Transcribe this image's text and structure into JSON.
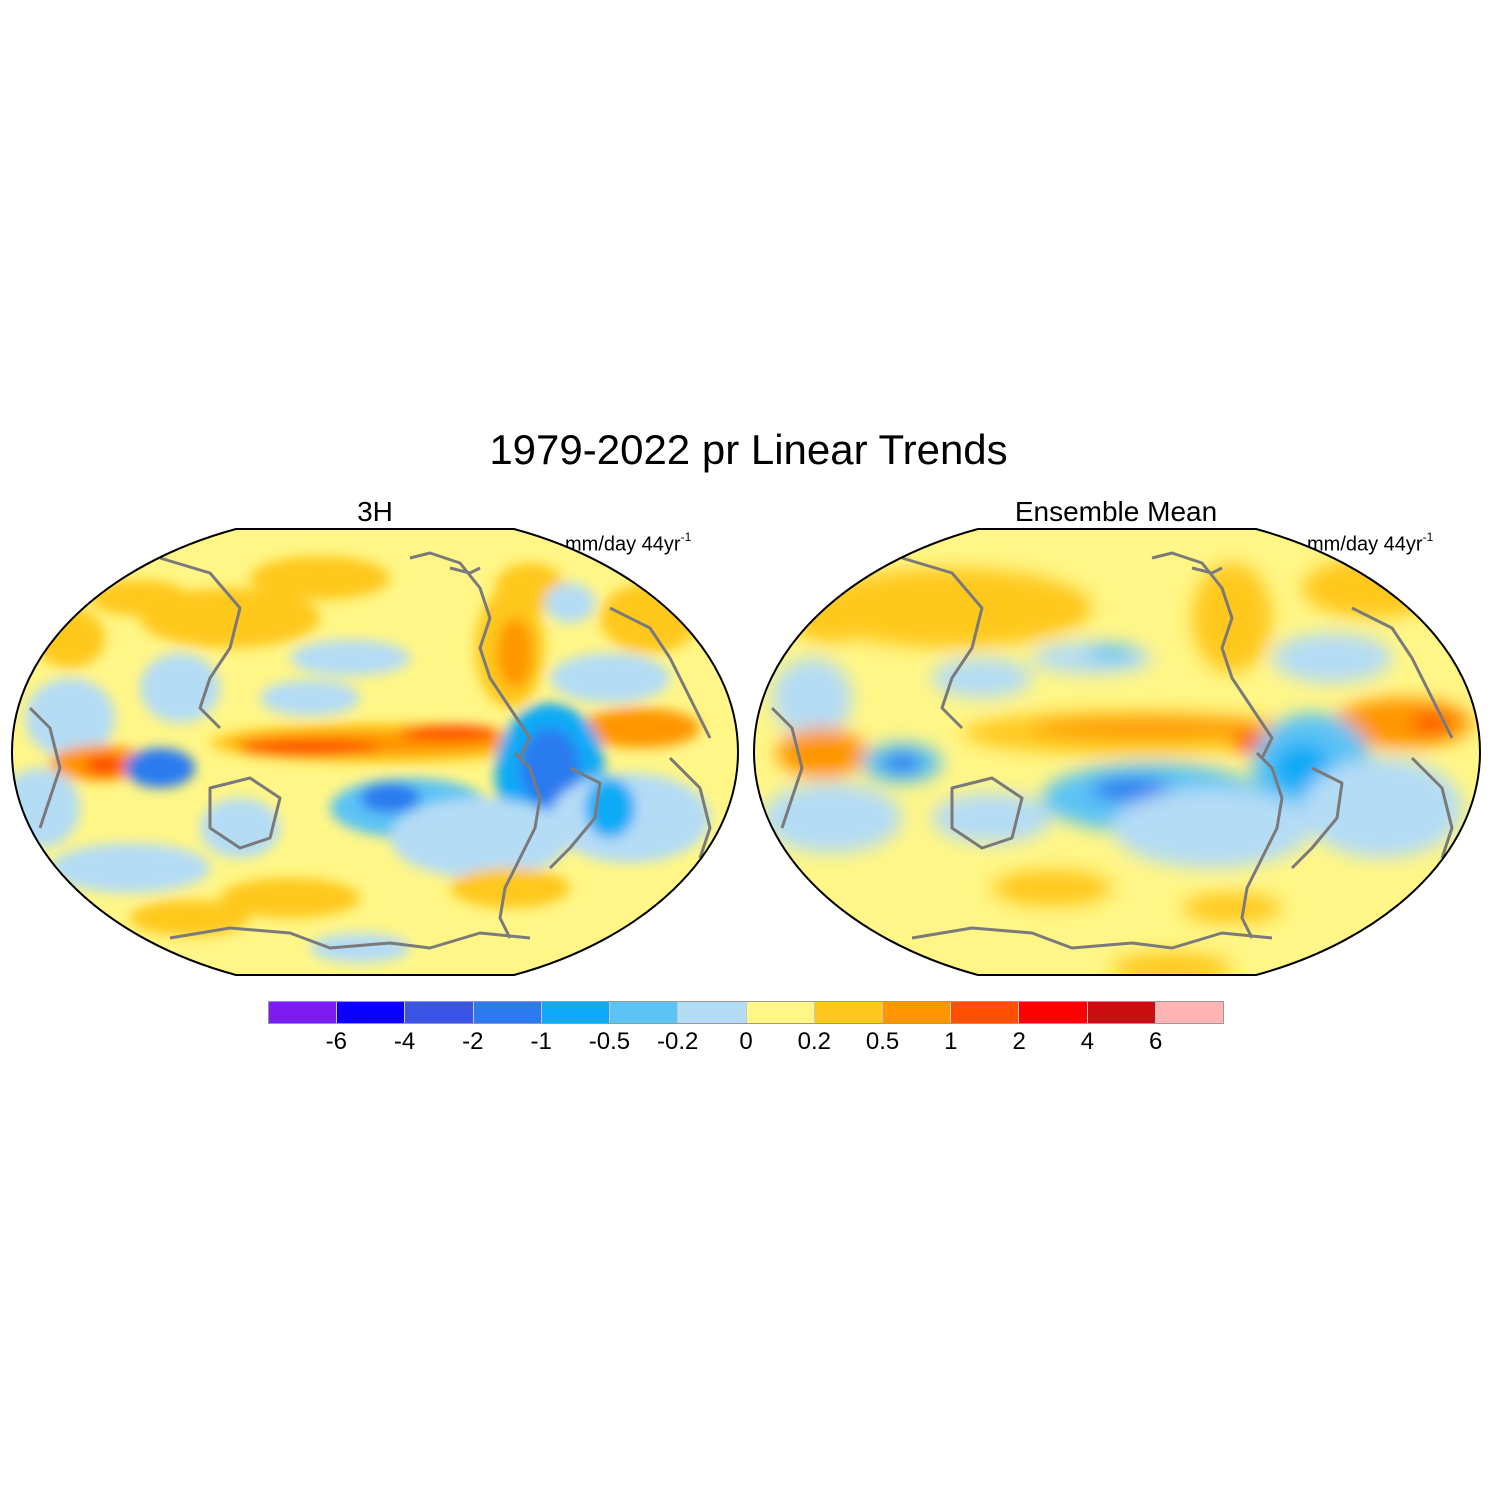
{
  "title": "1979-2022 pr Linear Trends",
  "panels": [
    {
      "title": "3H",
      "units_base": "mm/day 44yr",
      "units_exp": "-1"
    },
    {
      "title": "Ensemble Mean",
      "units_base": "mm/day 44yr",
      "units_exp": "-1"
    }
  ],
  "colorbar": {
    "labels": [
      "-6",
      "-4",
      "-2",
      "-1",
      "-0.5",
      "-0.2",
      "0",
      "0.2",
      "0.5",
      "1",
      "2",
      "4",
      "6"
    ],
    "colors": [
      "#7d1cf0",
      "#0a00ff",
      "#3a55e6",
      "#2b7af0",
      "#0faaf7",
      "#5cc3f5",
      "#b4dcf5",
      "#fff687",
      "#ffc81e",
      "#ff9600",
      "#ff5000",
      "#ff0000",
      "#c80e0e",
      "#ffb4b4"
    ]
  },
  "colors": {
    "coastline": "#7a7a7a",
    "map_border": "#000000"
  }
}
